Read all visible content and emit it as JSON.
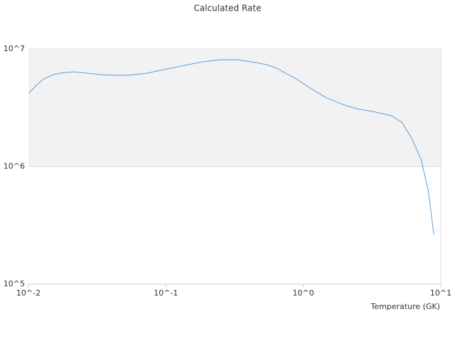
{
  "chart_data": {
    "type": "line",
    "title": "Calculated Rate",
    "x_label": "Temperature (GK)",
    "log_x": true,
    "log_y": true,
    "grid": true,
    "band_color": "#f2f2f2",
    "xlim": [
      0.01,
      10
    ],
    "ylim": [
      100000,
      10000000
    ],
    "xticks": [
      {
        "value": 0.01,
        "label": "10^-2"
      },
      {
        "value": 0.1,
        "label": "10^-1"
      },
      {
        "value": 1,
        "label": "10^0"
      },
      {
        "value": 10,
        "label": "10^1"
      }
    ],
    "yticks": [
      {
        "value": 100000,
        "label": "10^5"
      },
      {
        "value": 1000000,
        "label": "10^6"
      },
      {
        "value": 10000000,
        "label": "10^7"
      }
    ],
    "series": [
      {
        "color": "#5a9fe0",
        "x": [
          0.0101,
          0.0113,
          0.0127,
          0.0152,
          0.0181,
          0.0217,
          0.0329,
          0.0417,
          0.0529,
          0.0713,
          0.0962,
          0.137,
          0.185,
          0.248,
          0.334,
          0.45,
          0.54,
          0.64,
          0.73,
          0.87,
          1.1,
          1.48,
          2.0,
          2.54,
          3.22,
          4.37,
          5.2,
          6.2,
          7.2,
          8.1,
          8.9
        ],
        "values": [
          4220000,
          4850000,
          5500000,
          6060000,
          6300000,
          6400000,
          6060000,
          5980000,
          5980000,
          6200000,
          6680000,
          7260000,
          7780000,
          8100000,
          8100000,
          7670000,
          7360000,
          6870000,
          6300000,
          5650000,
          4720000,
          3830000,
          3330000,
          3070000,
          2940000,
          2710000,
          2390000,
          1710000,
          1140000,
          630000,
          265000
        ]
      }
    ]
  }
}
